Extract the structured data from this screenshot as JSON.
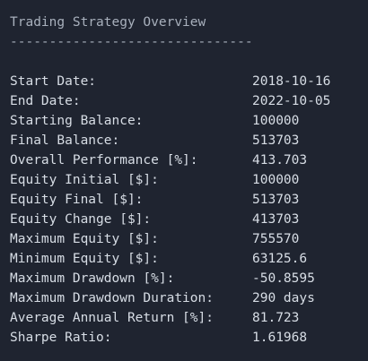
{
  "title": "Trading Strategy Overview",
  "underline": "-------------------------------",
  "rows": [
    {
      "label": "Start Date:",
      "value": "2018-10-16"
    },
    {
      "label": "End Date:",
      "value": "2022-10-05"
    },
    {
      "label": "Starting Balance:",
      "value": "100000"
    },
    {
      "label": "Final Balance:",
      "value": "513703"
    },
    {
      "label": "Overall Performance [%]:",
      "value": "413.703"
    },
    {
      "label": "Equity Initial [$]:",
      "value": "100000"
    },
    {
      "label": "Equity Final [$]:",
      "value": "513703"
    },
    {
      "label": "Equity Change [$]:",
      "value": "413703"
    },
    {
      "label": "Maximum Equity [$]:",
      "value": "755570"
    },
    {
      "label": "Minimum Equity [$]:",
      "value": "63125.6"
    },
    {
      "label": "Maximum Drawdown [%]:",
      "value": "-50.8595"
    },
    {
      "label": "Maximum Drawdown Duration:",
      "value": "290 days"
    },
    {
      "label": "Average Annual Return [%]:",
      "value": "81.723"
    },
    {
      "label": "Sharpe Ratio:",
      "value": "1.61968"
    }
  ],
  "colors": {
    "background": "#1f2430",
    "text": "#d7dde5",
    "title": "#a8b0bc"
  }
}
